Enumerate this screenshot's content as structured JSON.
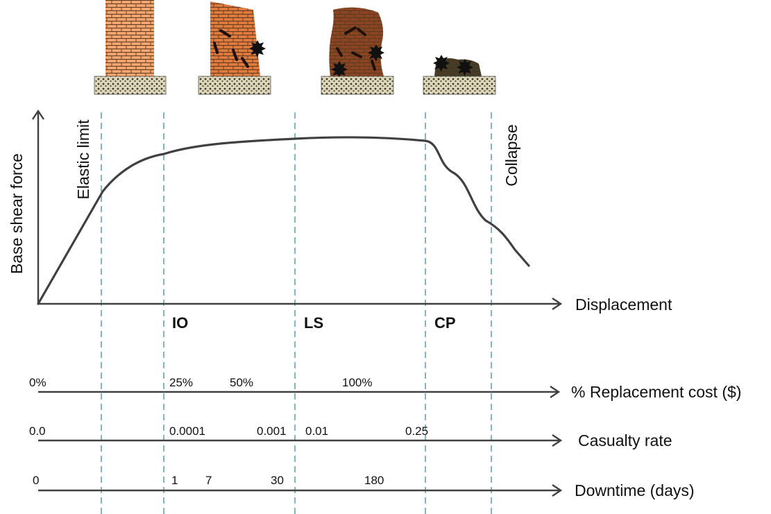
{
  "y_axis_label": "Base shear force",
  "x_axis_label": "Displacement",
  "annotations": {
    "elastic_limit": "Elastic limit",
    "collapse": "Collapse"
  },
  "performance_levels": {
    "io": "IO",
    "ls": "LS",
    "cp": "CP"
  },
  "scales": {
    "replacement_cost": {
      "label": "% Replacement cost ($)",
      "ticks": [
        "0%",
        "25%",
        "50%",
        "100%"
      ]
    },
    "casualty_rate": {
      "label": "Casualty rate",
      "ticks": [
        "0.0",
        "0.0001",
        "0.001",
        "0.01",
        "0.25"
      ]
    },
    "downtime": {
      "label": "Downtime (days)",
      "ticks": [
        "0",
        "1",
        "7",
        "30",
        "180"
      ]
    }
  },
  "colors": {
    "curve": "#404040",
    "axis": "#404040",
    "divider": "#31859c",
    "brick_intact": "#f4a46c",
    "brick_io": "#e07a3c",
    "brick_ls": "#8b4421",
    "brick_cp": "#3e3c26",
    "base": "#ddd6b8"
  },
  "icons": [
    "wall-intact-icon",
    "wall-io-damage-icon",
    "wall-ls-damage-icon",
    "wall-cp-collapse-icon"
  ]
}
